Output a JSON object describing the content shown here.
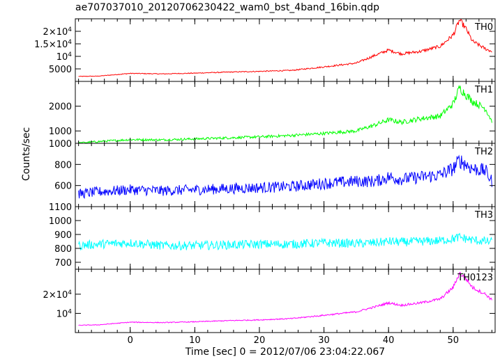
{
  "chart_data": {
    "type": "line",
    "title": "ae707037010_20120706230422_wam0_bst_4band_16bin.qdp",
    "xlabel": "Time [sec] 0 = 2012/07/06 23:04:22.067",
    "ylabel": "Counts/sec",
    "xlim": [
      -8.5,
      56.5
    ],
    "x_ticks": [
      0,
      10,
      20,
      30,
      40,
      50
    ],
    "x_tick_labels": [
      "0",
      "10",
      "20",
      "30",
      "40",
      "50"
    ],
    "panels": [
      {
        "name": "TH0",
        "color": "#ff0000",
        "ylim": [
          0,
          25000
        ],
        "y_ticks": [
          5000,
          10000,
          15000,
          20000
        ],
        "y_tick_labels": [
          {
            "text": "5000"
          },
          {
            "text": "10",
            "sup": "4"
          },
          {
            "text": "1.5×10",
            "sup": "4"
          },
          {
            "text": "2×10",
            "sup": "4"
          }
        ],
        "x": [
          -8,
          -5,
          0,
          5,
          10,
          15,
          20,
          25,
          30,
          35,
          38,
          40,
          42,
          45,
          48,
          50,
          51,
          52,
          53,
          55,
          56
        ],
        "values": [
          2000,
          2100,
          3200,
          3000,
          3300,
          3700,
          4000,
          4400,
          5800,
          7300,
          10500,
          12500,
          11000,
          12000,
          14000,
          18500,
          24500,
          21000,
          16000,
          13000,
          12000
        ]
      },
      {
        "name": "TH1",
        "color": "#00ff00",
        "ylim": [
          500,
          3000
        ],
        "y_ticks": [
          1000,
          2000
        ],
        "y_tick_labels": [
          {
            "text": "1000"
          },
          {
            "text": "2000"
          }
        ],
        "x": [
          -8,
          -5,
          0,
          5,
          10,
          15,
          20,
          25,
          30,
          35,
          38,
          40,
          42,
          45,
          48,
          50,
          51,
          52,
          53,
          55,
          56
        ],
        "values": [
          510,
          570,
          650,
          640,
          680,
          720,
          760,
          820,
          900,
          1000,
          1250,
          1450,
          1350,
          1500,
          1600,
          2100,
          2750,
          2450,
          2200,
          1900,
          1400
        ]
      },
      {
        "name": "TH2",
        "color": "#0000ff",
        "ylim": [
          400,
          1000
        ],
        "y_ticks": [
          600,
          800,
          1000
        ],
        "y_tick_labels": [
          {
            "text": "600"
          },
          {
            "text": "800"
          },
          {
            "text": "1000"
          }
        ],
        "x": [
          -8,
          -5,
          0,
          5,
          10,
          15,
          20,
          25,
          30,
          35,
          38,
          40,
          42,
          45,
          48,
          50,
          51,
          52,
          53,
          55,
          56
        ],
        "values": [
          520,
          540,
          560,
          550,
          560,
          570,
          580,
          590,
          620,
          640,
          640,
          680,
          660,
          680,
          700,
          760,
          840,
          800,
          760,
          740,
          640
        ]
      },
      {
        "name": "TH3",
        "color": "#00ffff",
        "ylim": [
          650,
          1100
        ],
        "y_ticks": [
          700,
          800,
          900,
          1000,
          1100
        ],
        "y_tick_labels": [
          {
            "text": "700"
          },
          {
            "text": "800"
          },
          {
            "text": "900"
          },
          {
            "text": "1000"
          },
          {
            "text": "1100"
          }
        ],
        "x": [
          -8,
          -5,
          0,
          5,
          10,
          15,
          20,
          25,
          30,
          35,
          38,
          40,
          42,
          45,
          48,
          50,
          51,
          52,
          53,
          55,
          56
        ],
        "values": [
          820,
          830,
          840,
          820,
          820,
          825,
          830,
          830,
          840,
          835,
          840,
          850,
          845,
          850,
          855,
          870,
          880,
          870,
          860,
          850,
          845
        ]
      },
      {
        "name": "TH0123",
        "color": "#ff00ff",
        "ylim": [
          0,
          33000
        ],
        "y_ticks": [
          10000,
          20000
        ],
        "y_tick_labels": [
          {
            "text": "10",
            "sup": "4"
          },
          {
            "text": "2×10",
            "sup": "4"
          }
        ],
        "x": [
          -8,
          -5,
          0,
          5,
          10,
          15,
          20,
          25,
          30,
          35,
          38,
          40,
          42,
          45,
          48,
          50,
          51,
          52,
          53,
          55,
          56
        ],
        "values": [
          3800,
          4000,
          5400,
          5200,
          5600,
          6200,
          6600,
          7300,
          9000,
          10800,
          13500,
          15500,
          14200,
          15500,
          17500,
          23500,
          31000,
          28000,
          23500,
          20000,
          17000
        ]
      }
    ]
  }
}
